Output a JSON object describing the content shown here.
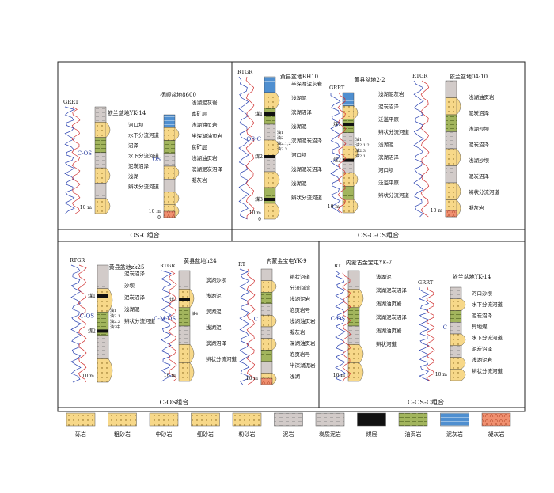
{
  "wells": [
    {
      "id": "w1",
      "name": "依兰盆地YK-14",
      "curves": "GRRT",
      "cycle": "C-OS",
      "scale": "10 m",
      "labels": [
        "河口坝",
        "水下分流河道",
        "沼泽",
        "水下分流河道",
        "泥炭沼泽",
        "浅湖",
        "辫状分流河道"
      ]
    },
    {
      "id": "w2",
      "name": "抚顺盆地8600",
      "cycle": "OS",
      "scale": "10 m",
      "zero": "0",
      "labels": [
        "浅湖泥灰岩",
        "富矿层",
        "浅湖油页岩",
        "半深湖油页岩",
        "贫矿层",
        "浅湖油页岩",
        "滨湖泥炭沼泽",
        "凝灰岩"
      ]
    },
    {
      "id": "w3",
      "name": "黄县盆地BH10",
      "curves": "RTGR",
      "cycle": "OS-C",
      "scale": "10 m",
      "zero": "0",
      "labels": [
        "半深湖泥灰岩",
        "浅湖泥",
        "滨湖沼泽",
        "浅湖泥",
        "滨湖泥炭沼泽",
        "河口坝",
        "浅湖泥炭沼泽",
        "浅湖泥",
        "辫状分流河道"
      ],
      "coal": [
        "煤1",
        "煤2",
        "煤3"
      ],
      "seams": [
        "油1",
        "油2",
        "油2.1,2",
        "油2.3"
      ]
    },
    {
      "id": "w4",
      "name": "黄县盆地2-2",
      "curves": "GRRT",
      "cycle": "",
      "scale": "10 m",
      "labels": [
        "浅湖泥灰岩",
        "泥炭沼泽",
        "泛滥平原",
        "辫状分流河道",
        "浅湖泥",
        "滨湖沼泽",
        "河口坝",
        "泛滥平原",
        "辫状分流河道"
      ],
      "coal": [
        "煤1",
        "煤2"
      ],
      "seams": [
        "油1",
        "油2.1,2",
        "油2.3",
        "油2.1"
      ]
    },
    {
      "id": "w5",
      "name": "依兰盆地04-10",
      "curves": "RTGR",
      "cycle": "",
      "scale": "10 m",
      "labels": [
        "浅湖油页岩",
        "泥炭沼泽",
        "浅湖沙坝",
        "泥炭沼泽",
        "浅湖沙坝",
        "泥炭沼泽",
        "辫状分流河道",
        "凝灰岩"
      ]
    },
    {
      "id": "w6",
      "name": "黄县盆地zk25",
      "curves": "RTGR",
      "cycle": "C-OS",
      "scale": "10 m",
      "labels": [
        "泥炭沼泽",
        "沙坝",
        "泥炭沼泽",
        "浅湖泥",
        "辫状分流河道"
      ],
      "coal": [
        "煤1",
        "煤2"
      ],
      "seams": [
        "油1",
        "油2.1",
        "油2.2",
        "油2中"
      ]
    },
    {
      "id": "w7",
      "name": "黄县盆地h24",
      "curves": "RTGR",
      "cycle": "C-M-OS",
      "scale": "10 m",
      "labels": [
        "滨湖沙坝",
        "浅湖泥",
        "滨湖泥",
        "浅湖泥",
        "滨湖沼泽",
        "辫状分流河道"
      ],
      "coal": [
        "煤4"
      ],
      "seams": [
        "油4"
      ]
    },
    {
      "id": "w8",
      "name": "内蒙金宝屯YK-9",
      "curves": "RT",
      "cycle": "C",
      "scale": "10 m",
      "labels": [
        "辫状河道",
        "分流间湾",
        "浅湖泥岩",
        "泡页岩号",
        "浅湖油页岩",
        "凝灰岩",
        "深湖油页岩",
        "泡页岩号",
        "半深湖泥岩",
        "浅湖"
      ]
    },
    {
      "id": "w9",
      "name": "内蒙古金宝屯YK-7",
      "curves": "RT",
      "cycle": "C-OS",
      "scale": "10 m",
      "labels": [
        "浅湖泥",
        "滨湖泥炭沼泽",
        "浅湖油页岩",
        "滨湖泥炭沼泽",
        "浅湖油页岩",
        "辫状河道"
      ]
    },
    {
      "id": "w10",
      "name": "依兰盆地YK-14",
      "curves": "GRRT",
      "cycle": "C",
      "scale": "10 m",
      "labels": [
        "河口沙坝",
        "水下分流河道",
        "泥炭沼泽",
        "异地煤",
        "水下分流河道",
        "泥炭沼泽",
        "浅湖泥岩",
        "辫状分流河道"
      ]
    }
  ],
  "panels": [
    "OS-C组合",
    "OS-C-OS组合",
    "C-OS组合",
    "C-OS-C组合"
  ],
  "legend": [
    {
      "label": "砾岩",
      "color": "#f7d889",
      "pattern": "gravel"
    },
    {
      "label": "粗砂岩",
      "color": "#f7d889",
      "pattern": "coarse"
    },
    {
      "label": "中砂岩",
      "color": "#f7d889",
      "pattern": "medium"
    },
    {
      "label": "细砂岩",
      "color": "#f7d889",
      "pattern": "fine"
    },
    {
      "label": "粉砂岩",
      "color": "#f7d889",
      "pattern": "silt"
    },
    {
      "label": "泥岩",
      "color": "#cfc8c6",
      "pattern": "mud"
    },
    {
      "label": "炭质泥岩",
      "color": "#e6e2df",
      "pattern": "carb"
    },
    {
      "label": "煤层",
      "color": "#111111",
      "pattern": "coal"
    },
    {
      "label": "油页岩",
      "color": "#9fb45b",
      "pattern": "oil"
    },
    {
      "label": "泥灰岩",
      "color": "#4f8fd0",
      "pattern": "marl"
    },
    {
      "label": "凝灰岩",
      "color": "#f09070",
      "pattern": "tuff"
    }
  ]
}
